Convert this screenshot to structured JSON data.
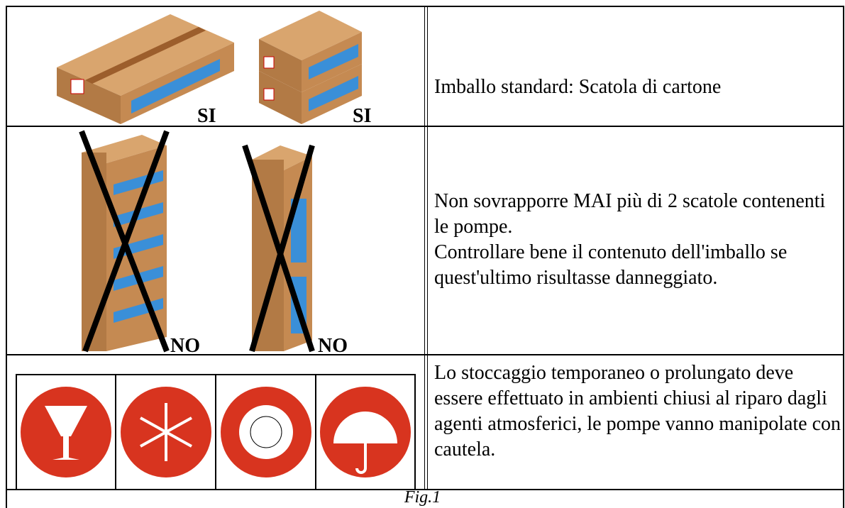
{
  "rows": [
    {
      "tags": [
        "SI",
        "SI"
      ],
      "text": [
        "Imballo standard: Scatola di cartone"
      ]
    },
    {
      "tags": [
        "NO",
        "NO"
      ],
      "text": [
        "Non sovrapporre MAI più di 2 scatole contenenti le pompe.",
        "Controllare bene il contenuto dell'imballo se quest'ultimo risultasse danneggiato."
      ]
    },
    {
      "tags": [],
      "text": [
        "Lo stoccaggio temporaneo o prolungato deve essere effettuato in ambienti chiusi al riparo dagli agenti atmosferici, le pompe vanno manipolate con cautela."
      ]
    }
  ],
  "caption": "Fig.1"
}
